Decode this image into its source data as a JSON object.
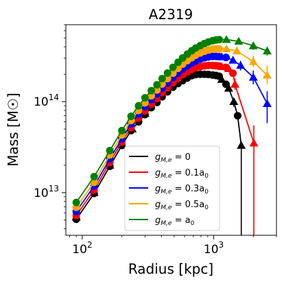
{
  "chart_data": {
    "type": "line",
    "title": "A2319",
    "xlabel": "Radius [kpc]",
    "ylabel": "Mass [M☉]",
    "xscale": "log",
    "yscale": "log",
    "xlim": [
      75,
      3000
    ],
    "ylim": [
      3400000000000.0,
      700000000000000.0
    ],
    "xticks": [
      {
        "value": 100,
        "base": "10",
        "exp": "2"
      },
      {
        "value": 1000,
        "base": "10",
        "exp": "3"
      }
    ],
    "yticks": [
      {
        "value": 10000000000000.0,
        "base": "10",
        "exp": "13"
      },
      {
        "value": 100000000000000.0,
        "base": "10",
        "exp": "14"
      }
    ],
    "grid": false,
    "legend_position": "lower-center",
    "x_circles": [
      90,
      123,
      162,
      200,
      235,
      268,
      300,
      335,
      370,
      405,
      445,
      490,
      535,
      580,
      630,
      680,
      730,
      790,
      850,
      910,
      980,
      1040,
      1100
    ],
    "series": [
      {
        "legend": "g_{M,e} = 0",
        "legend_base": "g",
        "legend_sub": "M,e",
        "legend_rhs": " = 0",
        "color": "#000000",
        "circles": [
          5100000000000.0,
          9800000000000.0,
          19500000000000.0,
          33000000000000.0,
          48000000000000.0,
          60000000000000.0,
          72000000000000.0,
          86000000000000.0,
          98000000000000.0,
          113000000000000.0,
          128000000000000.0,
          144000000000000.0,
          158000000000000.0,
          170000000000000.0,
          182000000000000.0,
          193000000000000.0,
          198000000000000.0,
          200000000000000.0,
          200000000000000.0,
          199000000000000.0,
          196000000000000.0,
          194000000000000.0,
          190000000000000.0
        ],
        "triangles": [
          {
            "x": 90,
            "y": 5400000000000.0
          },
          {
            "x": 123,
            "y": 10000000000000.0
          },
          {
            "x": 162,
            "y": 20000000000000.0
          },
          {
            "x": 200,
            "y": 34000000000000.0
          },
          {
            "x": 240,
            "y": 50000000000000.0
          },
          {
            "x": 300,
            "y": 74000000000000.0
          },
          {
            "x": 1150,
            "y": 175000000000000.0
          },
          {
            "x": 1300,
            "y": 140000000000000.0
          },
          {
            "x": 1420,
            "y": 100000000000000.0
          },
          {
            "x": 1620,
            "y": 33000000000000.0
          }
        ],
        "line_x": [
          1100,
          1150,
          1240,
          1300,
          1420,
          1520,
          1620
        ],
        "line_y": [
          190000000000000.0,
          175000000000000.0,
          155000000000000.0,
          140000000000000.0,
          100000000000000.0,
          70000000000000.0,
          33000000000000.0
        ],
        "end_circles": [
          {
            "x": 1240,
            "y": 155000000000000.0
          },
          {
            "x": 1520,
            "y": 70000000000000.0
          }
        ],
        "errorbars": [
          {
            "x": 1620,
            "lo": 3400000000000.0,
            "hi": 33000000000000.0
          },
          {
            "x": 1420,
            "lo": 88000000000000.0,
            "hi": 110000000000000.0
          }
        ]
      },
      {
        "legend": "g_{M,e} = 0.1a_0",
        "legend_base": "g",
        "legend_sub": "M,e",
        "legend_rhs": " = 0.1a",
        "legend_rhs_sub": "0",
        "color": "#ff0000",
        "circles": [
          5600000000000.0,
          10700000000000.0,
          21500000000000.0,
          36000000000000.0,
          52000000000000.0,
          66000000000000.0,
          79000000000000.0,
          94000000000000.0,
          108000000000000.0,
          125000000000000.0,
          142000000000000.0,
          162000000000000.0,
          180000000000000.0,
          198000000000000.0,
          213000000000000.0,
          225000000000000.0,
          235000000000000.0,
          242000000000000.0,
          247000000000000.0,
          250000000000000.0,
          250000000000000.0,
          248000000000000.0,
          246000000000000.0
        ],
        "triangles": [
          {
            "x": 1150,
            "y": 242000000000000.0
          },
          {
            "x": 1300,
            "y": 230000000000000.0
          },
          {
            "x": 1450,
            "y": 155000000000000.0
          },
          {
            "x": 2020,
            "y": 35000000000000.0
          }
        ],
        "line_x": [
          1100,
          1150,
          1240,
          1300,
          1400,
          1450,
          2020
        ],
        "line_y": [
          246000000000000.0,
          242000000000000.0,
          238000000000000.0,
          230000000000000.0,
          205000000000000.0,
          155000000000000.0,
          35000000000000.0
        ],
        "end_circles": [
          {
            "x": 1240,
            "y": 238000000000000.0
          },
          {
            "x": 1400,
            "y": 205000000000000.0
          }
        ],
        "errorbars": [
          {
            "x": 2020,
            "lo": 3400000000000.0,
            "hi": 55000000000000.0
          },
          {
            "x": 1450,
            "lo": 135000000000000.0,
            "hi": 180000000000000.0
          },
          {
            "x": 1300,
            "lo": 210000000000000.0,
            "hi": 250000000000000.0
          }
        ]
      },
      {
        "legend": "g_{M,e} = 0.3a_0",
        "legend_base": "g",
        "legend_sub": "M,e",
        "legend_rhs": " = 0.3a",
        "legend_rhs_sub": "0",
        "color": "#0000ff",
        "circles": [
          6200000000000.0,
          11800000000000.0,
          23500000000000.0,
          39000000000000.0,
          57000000000000.0,
          73000000000000.0,
          88000000000000.0,
          105000000000000.0,
          121000000000000.0,
          140000000000000.0,
          160000000000000.0,
          183000000000000.0,
          205000000000000.0,
          227000000000000.0,
          247000000000000.0,
          265000000000000.0,
          280000000000000.0,
          293000000000000.0,
          303000000000000.0,
          310000000000000.0,
          314000000000000.0,
          314000000000000.0,
          312000000000000.0
        ],
        "triangles": [
          {
            "x": 1150,
            "y": 310000000000000.0
          },
          {
            "x": 1400,
            "y": 285000000000000.0
          },
          {
            "x": 1600,
            "y": 250000000000000.0
          },
          {
            "x": 2000,
            "y": 185000000000000.0
          },
          {
            "x": 2550,
            "y": 95000000000000.0
          }
        ],
        "line_x": [
          1100,
          1150,
          1240,
          1400,
          1600,
          2000,
          2550
        ],
        "line_y": [
          312000000000000.0,
          310000000000000.0,
          306000000000000.0,
          285000000000000.0,
          250000000000000.0,
          185000000000000.0,
          95000000000000.0
        ],
        "end_circles": [
          {
            "x": 1240,
            "y": 306000000000000.0
          }
        ],
        "errorbars": [
          {
            "x": 2550,
            "lo": 58000000000000.0,
            "hi": 130000000000000.0
          },
          {
            "x": 2000,
            "lo": 155000000000000.0,
            "hi": 220000000000000.0
          },
          {
            "x": 1600,
            "lo": 220000000000000.0,
            "hi": 280000000000000.0
          }
        ]
      },
      {
        "legend": "g_{M,e} = 0.5a_0",
        "legend_base": "g",
        "legend_sub": "M,e",
        "legend_rhs": " = 0.5a",
        "legend_rhs_sub": "0",
        "color": "#ffa500",
        "circles": [
          6900000000000.0,
          13000000000000.0,
          26000000000000.0,
          43000000000000.0,
          62000000000000.0,
          80000000000000.0,
          97000000000000.0,
          116000000000000.0,
          134000000000000.0,
          156000000000000.0,
          179000000000000.0,
          205000000000000.0,
          232000000000000.0,
          258000000000000.0,
          282000000000000.0,
          304000000000000.0,
          324000000000000.0,
          342000000000000.0,
          357000000000000.0,
          369000000000000.0,
          377000000000000.0,
          380000000000000.0,
          380000000000000.0
        ],
        "triangles": [
          {
            "x": 1250,
            "y": 380000000000000.0
          },
          {
            "x": 1500,
            "y": 360000000000000.0
          },
          {
            "x": 2000,
            "y": 275000000000000.0
          },
          {
            "x": 2550,
            "y": 195000000000000.0
          }
        ],
        "line_x": [
          1100,
          1250,
          1500,
          2000,
          2550
        ],
        "line_y": [
          380000000000000.0,
          380000000000000.0,
          360000000000000.0,
          275000000000000.0,
          195000000000000.0
        ],
        "end_circles": [],
        "errorbars": [
          {
            "x": 2550,
            "lo": 155000000000000.0,
            "hi": 250000000000000.0
          },
          {
            "x": 2000,
            "lo": 240000000000000.0,
            "hi": 320000000000000.0
          }
        ]
      },
      {
        "legend": "g_{M,e} = a_0",
        "legend_base": "g",
        "legend_sub": "M,e",
        "legend_rhs": " = a",
        "legend_rhs_sub": "0",
        "color": "#008000",
        "circles": [
          7800000000000.0,
          15000000000000.0,
          29000000000000.0,
          48000000000000.0,
          69000000000000.0,
          90000000000000.0,
          110000000000000.0,
          132000000000000.0,
          153000000000000.0,
          179000000000000.0,
          206000000000000.0,
          238000000000000.0,
          270000000000000.0,
          302000000000000.0,
          333000000000000.0,
          362000000000000.0,
          388000000000000.0,
          412000000000000.0,
          434000000000000.0,
          452000000000000.0,
          467000000000000.0,
          476000000000000.0,
          480000000000000.0
        ],
        "triangles": [
          {
            "x": 1250,
            "y": 480000000000000.0
          },
          {
            "x": 1550,
            "y": 460000000000000.0
          },
          {
            "x": 2000,
            "y": 410000000000000.0
          },
          {
            "x": 2550,
            "y": 360000000000000.0
          }
        ],
        "line_x": [
          1100,
          1250,
          1550,
          2000,
          2550
        ],
        "line_y": [
          480000000000000.0,
          480000000000000.0,
          460000000000000.0,
          410000000000000.0,
          360000000000000.0
        ],
        "end_circles": [],
        "errorbars": [
          {
            "x": 2000,
            "lo": 370000000000000.0,
            "hi": 450000000000000.0
          },
          {
            "x": 2550,
            "lo": 320000000000000.0,
            "hi": 400000000000000.0
          }
        ]
      }
    ]
  }
}
